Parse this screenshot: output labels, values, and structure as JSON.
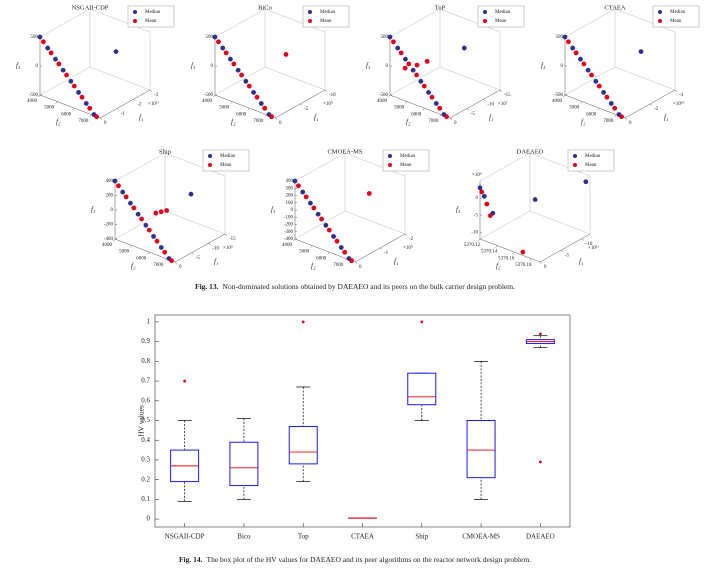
{
  "chart_data": [
    {
      "type": "scatter3d",
      "title": "NSGAII-CDP",
      "xlabel": "f₁",
      "ylabel": "f₂",
      "zlabel": "f₃",
      "xlim": [
        0,
        -3
      ],
      "xticks": [
        0,
        -1,
        -2,
        -3
      ],
      "x_exponent": "×10¹¹",
      "ylim": [
        4000,
        7500
      ],
      "yticks": [
        4000,
        5000,
        6000,
        7000
      ],
      "zlim": [
        -500,
        500
      ],
      "zticks": [
        -500,
        0,
        500
      ],
      "series": [
        {
          "name": "Median",
          "color": "#2e3192",
          "x": [
            0,
            0,
            0,
            0,
            0,
            0,
            0,
            0,
            -2.4
          ],
          "y": [
            4000,
            4450,
            4900,
            5350,
            5800,
            6250,
            6700,
            7150,
            6100
          ],
          "z": [
            500,
            360,
            220,
            80,
            -60,
            -200,
            -340,
            -480,
            100
          ]
        },
        {
          "name": "Mean",
          "color": "#e3001b",
          "x": [
            0,
            0,
            0,
            0,
            0,
            0,
            0,
            0
          ],
          "y": [
            4200,
            4650,
            5100,
            5550,
            6000,
            6450,
            6900,
            7300
          ],
          "z": [
            440,
            300,
            160,
            20,
            -120,
            -260,
            -400,
            -500
          ]
        }
      ]
    },
    {
      "type": "scatter3d",
      "title": "BiCo",
      "xlabel": "f₁",
      "ylabel": "f₂",
      "zlabel": "f₃",
      "xlim": [
        0,
        -10
      ],
      "xticks": [
        0,
        -5,
        -10
      ],
      "x_exponent": "×10⁹",
      "ylim": [
        4000,
        7500
      ],
      "yticks": [
        4000,
        5000,
        6000,
        7000
      ],
      "zlim": [
        -500,
        500
      ],
      "zticks": [
        -500,
        0,
        500
      ],
      "series": [
        {
          "name": "Median",
          "color": "#2e3192",
          "x": [
            0,
            0,
            0,
            0,
            0,
            0,
            0,
            0
          ],
          "y": [
            4000,
            4450,
            4900,
            5350,
            5800,
            6250,
            6700,
            7150
          ],
          "z": [
            500,
            360,
            220,
            80,
            -60,
            -200,
            -340,
            -480
          ]
        },
        {
          "name": "Mean",
          "color": "#e3001b",
          "x": [
            0,
            0,
            0,
            0,
            0,
            0,
            0,
            0,
            -7
          ],
          "y": [
            4200,
            4650,
            5100,
            5550,
            6000,
            6450,
            6900,
            7300,
            6100
          ],
          "z": [
            440,
            300,
            160,
            20,
            -120,
            -260,
            -400,
            -500,
            100
          ]
        }
      ]
    },
    {
      "type": "scatter3d",
      "title": "ToP",
      "xlabel": "f₁",
      "ylabel": "f₂",
      "zlabel": "f₃",
      "xlim": [
        0,
        -15
      ],
      "xticks": [
        0,
        -5,
        -10,
        -15
      ],
      "x_exponent": "×10⁷",
      "ylim": [
        4000,
        7500
      ],
      "yticks": [
        4000,
        5000,
        6000,
        7000
      ],
      "zlim": [
        -500,
        500
      ],
      "zticks": [
        -500,
        0,
        500
      ],
      "series": [
        {
          "name": "Median",
          "color": "#2e3192",
          "x": [
            0,
            0,
            0,
            0,
            0,
            0,
            0,
            0,
            -12
          ],
          "y": [
            4000,
            4450,
            4900,
            5350,
            5800,
            6250,
            6700,
            7150,
            6000
          ],
          "z": [
            500,
            360,
            220,
            80,
            -60,
            -200,
            -340,
            -480,
            150
          ]
        },
        {
          "name": "Mean",
          "color": "#e3001b",
          "x": [
            0,
            0,
            0,
            0,
            0,
            0,
            0,
            0,
            -3,
            -4.5,
            -6
          ],
          "y": [
            4200,
            4650,
            5100,
            5550,
            6000,
            6450,
            6900,
            7300,
            4300,
            4700,
            5000
          ],
          "z": [
            440,
            300,
            160,
            20,
            -120,
            -260,
            -400,
            -500,
            -100,
            -50,
            0
          ]
        }
      ]
    },
    {
      "type": "scatter3d",
      "title": "CTAEA",
      "xlabel": "f₁",
      "ylabel": "f₂",
      "zlabel": "f₃",
      "xlim": [
        0,
        -4
      ],
      "xticks": [
        0,
        -2,
        -4
      ],
      "x_exponent": "×10¹⁰",
      "ylim": [
        4000,
        7500
      ],
      "yticks": [
        4000,
        5000,
        6000,
        7000
      ],
      "zlim": [
        -500,
        500
      ],
      "zticks": [
        -500,
        0,
        500
      ],
      "series": [
        {
          "name": "Median",
          "color": "#2e3192",
          "x": [
            0,
            0,
            0,
            0,
            0,
            0,
            0,
            0,
            -3.2
          ],
          "y": [
            4000,
            4450,
            4900,
            5350,
            5800,
            6250,
            6700,
            7150,
            6100
          ],
          "z": [
            500,
            360,
            220,
            80,
            -60,
            -200,
            -340,
            -480,
            100
          ]
        },
        {
          "name": "Mean",
          "color": "#e3001b",
          "x": [
            0,
            0,
            0,
            0,
            0,
            0,
            0,
            0
          ],
          "y": [
            4200,
            4650,
            5100,
            5550,
            6000,
            6450,
            6900,
            7300
          ],
          "z": [
            440,
            300,
            160,
            20,
            -120,
            -260,
            -400,
            -500
          ]
        }
      ]
    },
    {
      "type": "scatter3d",
      "title": "Ship",
      "xlabel": "f₁",
      "ylabel": "f₂",
      "zlabel": "f₃",
      "xlim": [
        0,
        -15
      ],
      "xticks": [
        0,
        -5,
        -10,
        -15
      ],
      "x_exponent": "×10⁹",
      "ylim": [
        4000,
        7500
      ],
      "yticks": [
        4000,
        5000,
        6000,
        7000
      ],
      "zlim": [
        -400,
        400
      ],
      "zticks": [
        -400,
        -200,
        0,
        200,
        400
      ],
      "series": [
        {
          "name": "Median",
          "color": "#2e3192",
          "x": [
            0,
            0,
            0,
            0,
            0,
            0,
            0,
            0,
            -12
          ],
          "y": [
            4000,
            4450,
            4900,
            5350,
            5800,
            6250,
            6700,
            7150,
            6100
          ],
          "z": [
            400,
            288,
            176,
            64,
            -48,
            -160,
            -272,
            -384,
            100
          ]
        },
        {
          "name": "Mean",
          "color": "#e3001b",
          "x": [
            0,
            0,
            0,
            0,
            0,
            0,
            0,
            0,
            -4,
            -4.6,
            -5.2
          ],
          "y": [
            4200,
            4650,
            5100,
            5550,
            6000,
            6450,
            6900,
            7300,
            5600,
            5800,
            6000
          ],
          "z": [
            352,
            240,
            128,
            16,
            -96,
            -208,
            -320,
            -400,
            0,
            20,
            40
          ]
        }
      ]
    },
    {
      "type": "scatter3d",
      "title": "CMOEA-MS",
      "xlabel": "f₁",
      "ylabel": "f₂",
      "zlabel": "f₃",
      "xlim": [
        0,
        -2
      ],
      "xticks": [
        0,
        -1,
        -2
      ],
      "x_exponent": "×10⁹",
      "ylim": [
        4000,
        7500
      ],
      "yticks": [
        4000,
        5000,
        6000,
        7000
      ],
      "zlim": [
        -400,
        400
      ],
      "zticks": [
        -400,
        -300,
        -200,
        -100,
        0,
        100,
        200,
        300,
        400
      ],
      "series": [
        {
          "name": "Median",
          "color": "#2e3192",
          "x": [
            0,
            0,
            0,
            0,
            0,
            0,
            0,
            0
          ],
          "y": [
            4000,
            4450,
            4900,
            5350,
            5800,
            6250,
            6700,
            7150
          ],
          "z": [
            400,
            288,
            176,
            64,
            -48,
            -160,
            -272,
            -384
          ]
        },
        {
          "name": "Mean",
          "color": "#e3001b",
          "x": [
            0,
            0,
            0,
            0,
            0,
            0,
            0,
            0,
            -1.6
          ],
          "y": [
            4200,
            4650,
            5100,
            5550,
            6000,
            6450,
            6900,
            7300,
            6000
          ],
          "z": [
            352,
            240,
            128,
            16,
            -96,
            -208,
            -320,
            -400,
            100
          ]
        }
      ]
    },
    {
      "type": "scatter3d",
      "title": "DAEAEO",
      "xlabel": "f₁",
      "ylabel": "f₂",
      "zlabel": "f₃",
      "xlim": [
        0,
        -12
      ],
      "xticks": [
        0,
        -5,
        -10
      ],
      "x_exponent": "×10¹¹",
      "ylim": [
        5370.12,
        5370.19
      ],
      "yticks": [
        5370.12,
        5370.14,
        5370.16,
        5370.18
      ],
      "zlim": [
        -12,
        5
      ],
      "zticks": [
        0,
        -5,
        -10
      ],
      "z_exponent": "×10⁴",
      "series": [
        {
          "name": "Median",
          "color": "#2e3192",
          "x": [
            0,
            0,
            0,
            -5,
            -11
          ],
          "y": [
            5370.12,
            5370.125,
            5370.135,
            5370.16,
            5370.19
          ],
          "z": [
            3,
            1,
            -3,
            0,
            4
          ]
        },
        {
          "name": "Mean",
          "color": "#e3001b",
          "x": [
            0,
            0,
            0,
            0
          ],
          "y": [
            5370.122,
            5370.128,
            5370.132,
            5370.17
          ],
          "z": [
            2,
            -1,
            -4,
            -11
          ]
        }
      ]
    },
    {
      "type": "box",
      "ylabel": "HV values",
      "categories": [
        "NSGAII-CDP",
        "Bico",
        "Top",
        "CTAEA",
        "Ship",
        "CMOEA-MS",
        "DAEAEO"
      ],
      "ylim": [
        -0.04,
        1.035
      ],
      "yticks": [
        0,
        0.1,
        0.2,
        0.3,
        0.4,
        0.5,
        0.6,
        0.7,
        0.8,
        0.9,
        1
      ],
      "box_color": "#0000ff",
      "median_color": "#ff0000",
      "outlier_color": "#e3001b",
      "boxes": [
        {
          "min": 0.09,
          "q1": 0.19,
          "median": 0.27,
          "q3": 0.35,
          "max": 0.5,
          "outliers": [
            0.7
          ]
        },
        {
          "min": 0.1,
          "q1": 0.17,
          "median": 0.26,
          "q3": 0.39,
          "max": 0.51,
          "outliers": []
        },
        {
          "min": 0.19,
          "q1": 0.28,
          "median": 0.34,
          "q3": 0.47,
          "max": 0.67,
          "outliers": [
            1
          ]
        },
        {
          "min": 0.005,
          "q1": 0.005,
          "median": 0.005,
          "q3": 0.005,
          "max": 0.005,
          "outliers": []
        },
        {
          "min": 0.5,
          "q1": 0.58,
          "median": 0.62,
          "q3": 0.74,
          "max": 0.74,
          "outliers": [
            1
          ]
        },
        {
          "min": 0.1,
          "q1": 0.21,
          "median": 0.35,
          "q3": 0.5,
          "max": 0.8,
          "outliers": []
        },
        {
          "min": 0.87,
          "q1": 0.89,
          "median": 0.9,
          "q3": 0.91,
          "max": 0.93,
          "outliers": [
            0.94,
            0.29
          ]
        }
      ]
    }
  ],
  "captions": [
    {
      "label": "Fig. 13.",
      "text": "Non-dominated solutions obtained by DAEAEO and its peers on the bulk carrier design problem."
    },
    {
      "label": "Fig. 14.",
      "text": "The box plot of the HV values for DAEAEO and its peer algorithms on the reactor network design problem."
    }
  ]
}
